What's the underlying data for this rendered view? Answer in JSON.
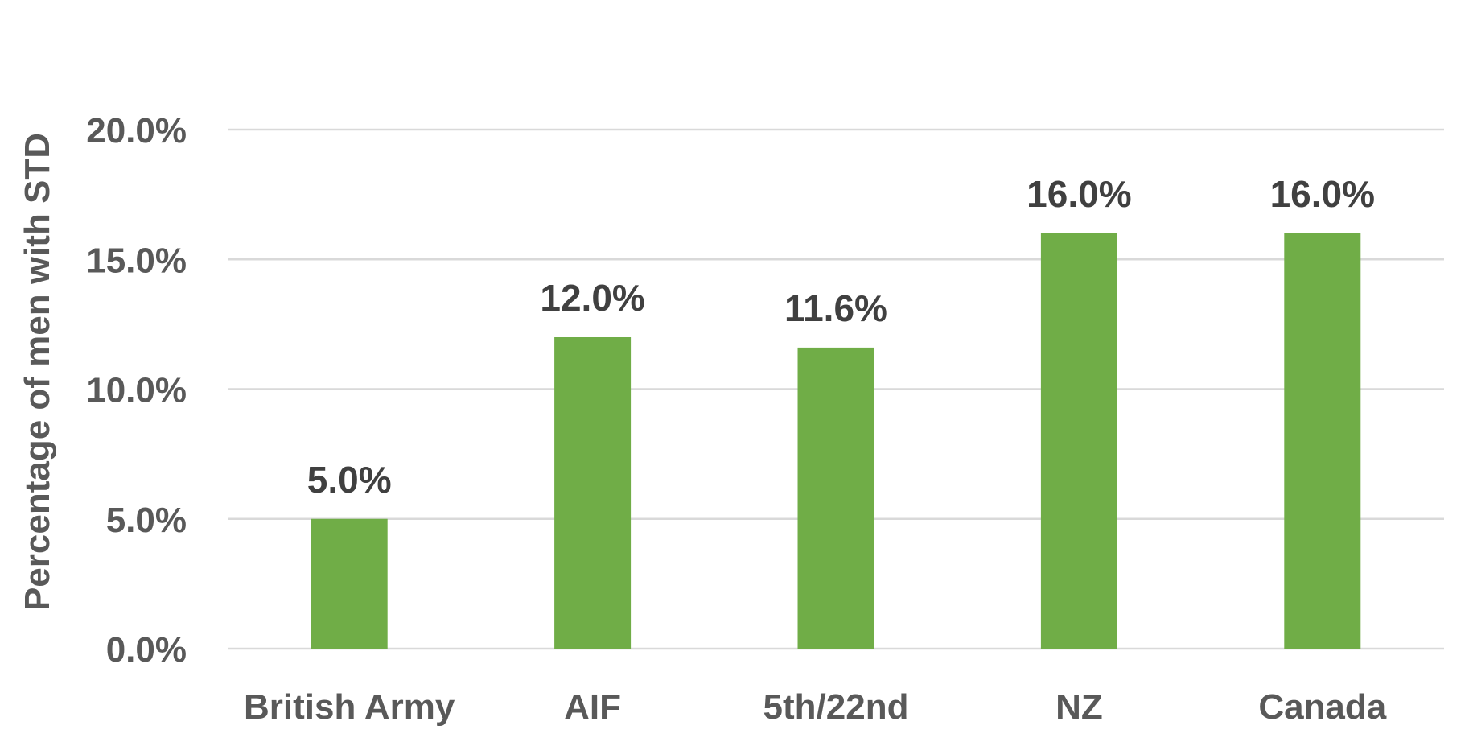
{
  "chart_data": {
    "type": "bar",
    "categories": [
      "British Army",
      "AIF",
      "5th/22nd",
      "NZ",
      "Canada"
    ],
    "values": [
      5.0,
      12.0,
      11.6,
      16.0,
      16.0
    ],
    "data_labels": [
      "5.0%",
      "12.0%",
      "11.6%",
      "16.0%",
      "16.0%"
    ],
    "title": "",
    "xlabel": "",
    "ylabel": "Percentage of men with STD",
    "ylim": [
      0,
      20
    ],
    "yticks": [
      0,
      5,
      10,
      15,
      20
    ],
    "ytick_labels": [
      "0.0%",
      "5.0%",
      "10.0%",
      "15.0%",
      "20.0%"
    ],
    "grid": true,
    "legend": "none",
    "colors": {
      "bar": "#70AD47",
      "grid": "#D9D9D9",
      "tick_text": "#595959",
      "label_text": "#404040",
      "background": "#FFFFFF"
    }
  }
}
